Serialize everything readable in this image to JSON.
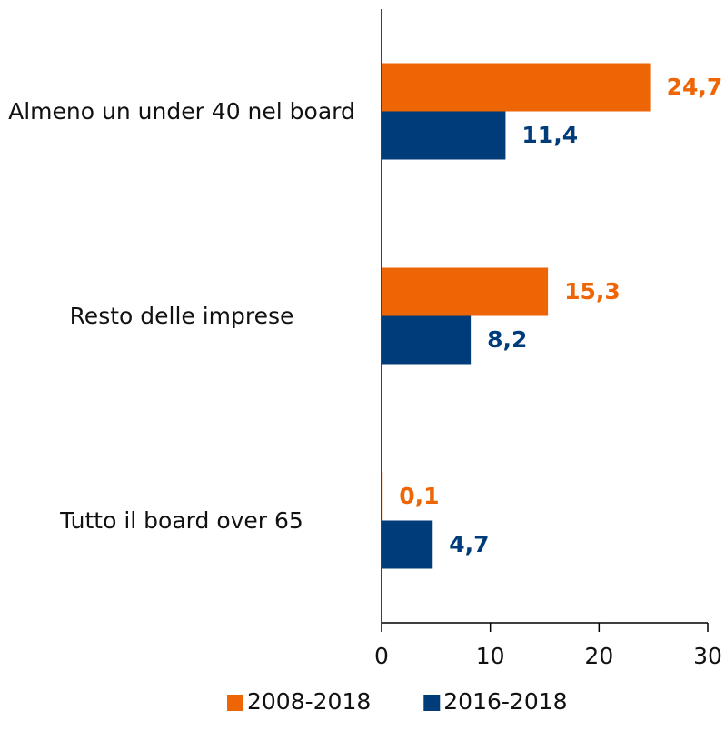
{
  "chart_data": {
    "type": "bar",
    "orientation": "horizontal",
    "categories": [
      "Almeno un under 40 nel board",
      "Resto delle imprese",
      "Tutto il board over 65"
    ],
    "series": [
      {
        "name": "2008-2018",
        "color": "#ed6504",
        "values": [
          24.7,
          15.3,
          0.1
        ],
        "value_labels": [
          "24,7",
          "15,3",
          "0,1"
        ]
      },
      {
        "name": "2016-2018",
        "color": "#003b7a",
        "values": [
          11.4,
          8.2,
          4.7
        ],
        "value_labels": [
          "11,4",
          "8,2",
          "4,7"
        ]
      }
    ],
    "xlim": [
      0,
      30
    ],
    "xticks": [
      0,
      10,
      20,
      30
    ],
    "grid": false,
    "legend": "bottom"
  }
}
